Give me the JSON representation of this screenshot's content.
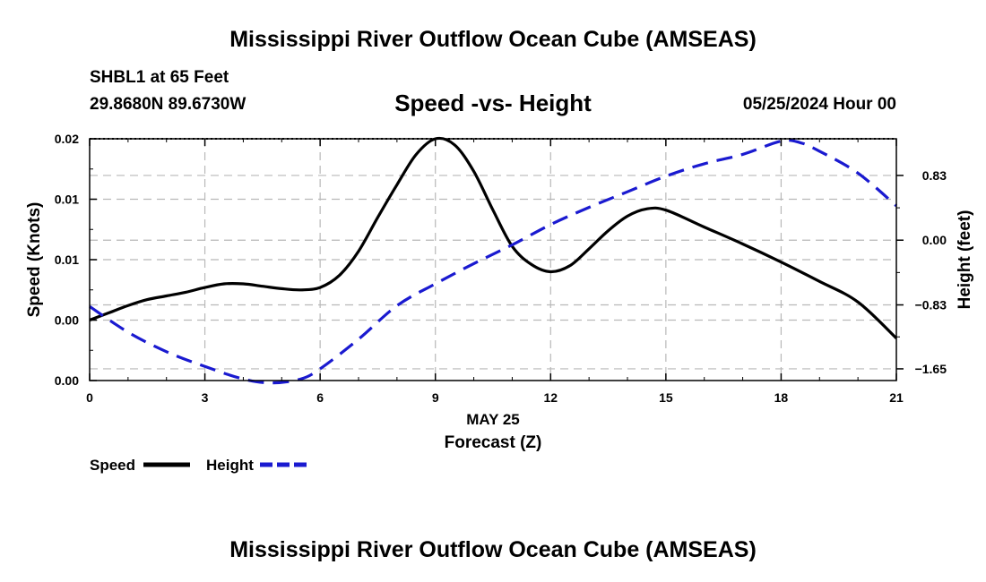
{
  "header": {
    "title": "Mississippi River Outflow Ocean Cube (AMSEAS)",
    "station": "SHBL1 at 65 Feet",
    "coords": "29.8680N  89.6730W",
    "subtitle": "Speed -vs- Height",
    "datetime": "05/25/2024 Hour 00"
  },
  "footer": {
    "title": "Mississippi River Outflow Ocean Cube (AMSEAS)"
  },
  "chart_data": {
    "type": "line",
    "xlabel_date": "MAY 25",
    "xlabel": "Forecast (Z)",
    "xlim": [
      0,
      21
    ],
    "x_ticks": [
      0,
      3,
      6,
      9,
      12,
      15,
      18,
      21
    ],
    "x_tick_labels": [
      "0",
      "3",
      "6",
      "9",
      "12",
      "15",
      "18",
      "21"
    ],
    "ylabel_left": "Speed (Knots)",
    "ylim_left": [
      0.0,
      0.02
    ],
    "y_ticks_left": [
      0.0,
      0.005,
      0.01,
      0.015,
      0.02
    ],
    "y_tick_labels_left": [
      "0.00",
      "0.00",
      "0.01",
      "0.01",
      "0.02"
    ],
    "ylabel_right": "Height (feet)",
    "ylim_right": [
      -1.8,
      1.3
    ],
    "y_ticks_right": [
      -1.65,
      -0.83,
      0.0,
      0.83
    ],
    "y_tick_labels_right": [
      "−1.65",
      "−0.83",
      "0.00",
      "0.83"
    ],
    "grid": true,
    "series": [
      {
        "name": "Speed",
        "axis": "left",
        "color": "#000000",
        "dash": "solid",
        "x": [
          0,
          0.5,
          1,
          1.5,
          2,
          2.5,
          3,
          3.5,
          4,
          4.5,
          5,
          5.5,
          6,
          6.5,
          7,
          7.5,
          8,
          8.5,
          9,
          9.5,
          10,
          10.5,
          11,
          11.5,
          12,
          12.5,
          13,
          13.5,
          14,
          14.5,
          15,
          16,
          17,
          18,
          19,
          20,
          21
        ],
        "values": [
          0.005,
          0.0056,
          0.0062,
          0.0067,
          0.007,
          0.0073,
          0.0077,
          0.008,
          0.008,
          0.0078,
          0.0076,
          0.0075,
          0.0077,
          0.0087,
          0.0107,
          0.0135,
          0.0162,
          0.0187,
          0.02,
          0.0195,
          0.0173,
          0.0141,
          0.0111,
          0.0096,
          0.009,
          0.0095,
          0.0109,
          0.0124,
          0.0136,
          0.0142,
          0.0141,
          0.0127,
          0.0113,
          0.0098,
          0.0082,
          0.0065,
          0.0035
        ]
      },
      {
        "name": "Height",
        "axis": "right",
        "color": "#1a1ad0",
        "dash": "dashed",
        "x": [
          0,
          1,
          2,
          3,
          4,
          4.75,
          5.5,
          6,
          7,
          8,
          9,
          10,
          11,
          12,
          13,
          14,
          15,
          16,
          17,
          18,
          18.5,
          19,
          20,
          21
        ],
        "values": [
          -0.85,
          -1.18,
          -1.43,
          -1.62,
          -1.78,
          -1.83,
          -1.78,
          -1.65,
          -1.27,
          -0.84,
          -0.56,
          -0.3,
          -0.06,
          0.2,
          0.42,
          0.62,
          0.82,
          0.98,
          1.1,
          1.27,
          1.25,
          1.14,
          0.86,
          0.44
        ]
      }
    ],
    "legend": [
      {
        "label": "Speed",
        "color": "#000000",
        "dash": "solid"
      },
      {
        "label": "Height",
        "color": "#1a1ad0",
        "dash": "dashed"
      }
    ]
  }
}
